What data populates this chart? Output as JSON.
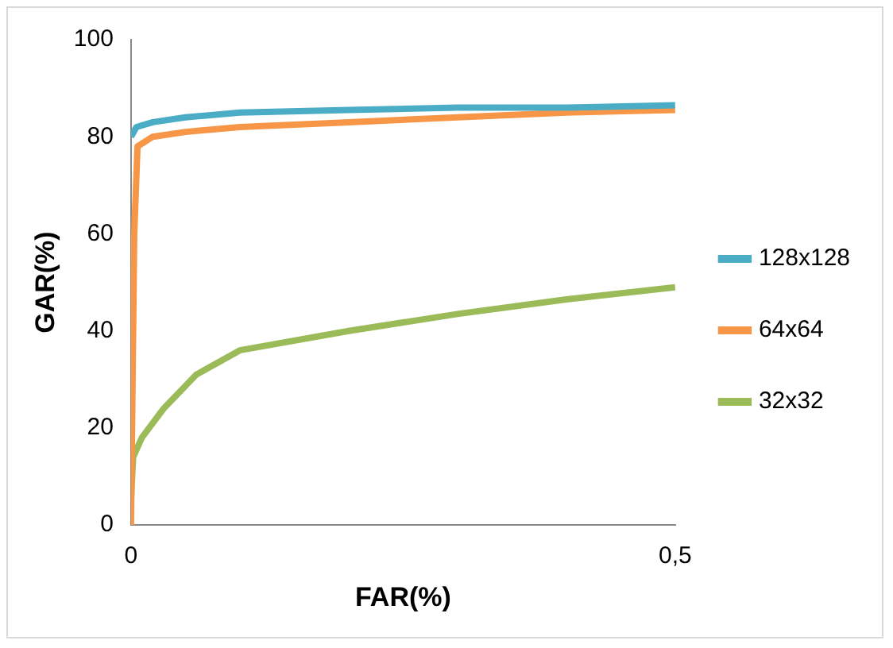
{
  "chart_data": {
    "type": "line",
    "xlabel": "FAR(%)",
    "ylabel": "GAR(%)",
    "xlim": [
      0,
      0.5
    ],
    "xticks": [
      0,
      {
        "value": 0.5,
        "label": "0,5"
      }
    ],
    "ylim": [
      0,
      100
    ],
    "yticks": [
      0,
      20,
      40,
      60,
      80,
      100
    ],
    "grid": false,
    "legend": "right",
    "marker": "none",
    "line_style": "solid",
    "series": [
      {
        "name": "128x128",
        "color": "#4bacc6",
        "x": [
          0,
          0.005,
          0.02,
          0.05,
          0.1,
          0.2,
          0.3,
          0.4,
          0.5
        ],
        "values": [
          80,
          82,
          83,
          84,
          85,
          85.5,
          86,
          86,
          86.5
        ]
      },
      {
        "name": "64x64",
        "color": "#f79646",
        "x": [
          0,
          0.003,
          0.006,
          0.02,
          0.05,
          0.1,
          0.2,
          0.3,
          0.4,
          0.5
        ],
        "values": [
          0,
          60,
          78,
          80,
          81,
          82,
          83,
          84,
          85,
          85.5
        ]
      },
      {
        "name": "32x32",
        "color": "#9bbb59",
        "x": [
          0,
          0.002,
          0.01,
          0.03,
          0.06,
          0.1,
          0.2,
          0.3,
          0.4,
          0.5
        ],
        "values": [
          5,
          14,
          18,
          24,
          31,
          36,
          40,
          43.5,
          46.5,
          49
        ]
      }
    ]
  }
}
